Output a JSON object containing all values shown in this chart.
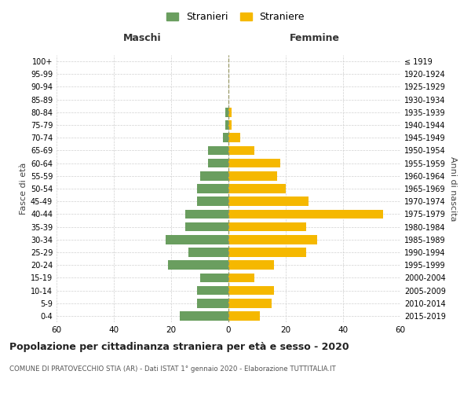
{
  "age_groups": [
    "100+",
    "95-99",
    "90-94",
    "85-89",
    "80-84",
    "75-79",
    "70-74",
    "65-69",
    "60-64",
    "55-59",
    "50-54",
    "45-49",
    "40-44",
    "35-39",
    "30-34",
    "25-29",
    "20-24",
    "15-19",
    "10-14",
    "5-9",
    "0-4"
  ],
  "birth_years": [
    "≤ 1919",
    "1920-1924",
    "1925-1929",
    "1930-1934",
    "1935-1939",
    "1940-1944",
    "1945-1949",
    "1950-1954",
    "1955-1959",
    "1960-1964",
    "1965-1969",
    "1970-1974",
    "1975-1979",
    "1980-1984",
    "1985-1989",
    "1990-1994",
    "1995-1999",
    "2000-2004",
    "2005-2009",
    "2010-2014",
    "2015-2019"
  ],
  "maschi": [
    0,
    0,
    0,
    0,
    1,
    1,
    2,
    7,
    7,
    10,
    11,
    11,
    15,
    15,
    22,
    14,
    21,
    10,
    11,
    11,
    17
  ],
  "femmine": [
    0,
    0,
    0,
    0,
    1,
    1,
    4,
    9,
    18,
    17,
    20,
    28,
    54,
    27,
    31,
    27,
    16,
    9,
    16,
    15,
    11
  ],
  "maschi_color": "#6a9e5f",
  "femmine_color": "#f5b800",
  "background_color": "#ffffff",
  "grid_color": "#cccccc",
  "center_line_color": "#999966",
  "title": "Popolazione per cittadinanza straniera per età e sesso - 2020",
  "subtitle": "COMUNE DI PRATOVECCHIO STIA (AR) - Dati ISTAT 1° gennaio 2020 - Elaborazione TUTTITALIA.IT",
  "ylabel_left": "Fasce di età",
  "ylabel_right": "Anni di nascita",
  "xlabel_left": "Maschi",
  "xlabel_right": "Femmine",
  "legend_stranieri": "Stranieri",
  "legend_straniere": "Straniere",
  "xlim": 60
}
